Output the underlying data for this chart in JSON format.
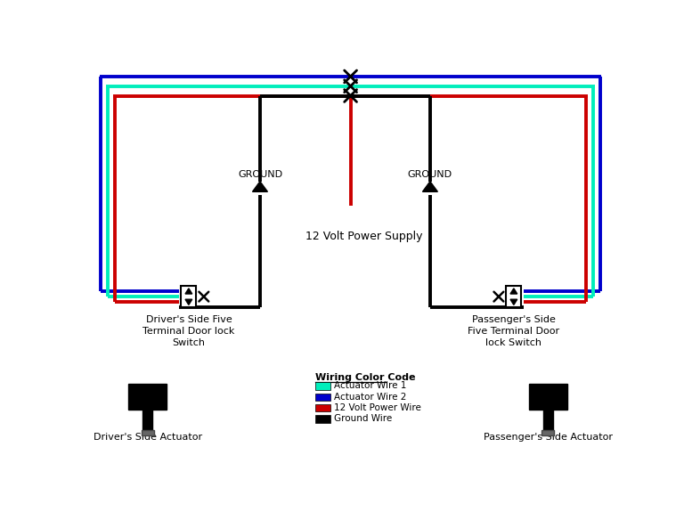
{
  "bg_color": "#ffffff",
  "colors": {
    "blue": "#0000cc",
    "cyan": "#00eebb",
    "red": "#cc0000",
    "black": "#000000"
  },
  "legend": {
    "title": "Wiring Color Code",
    "items": [
      {
        "label": "Actuator Wire 1",
        "color": "#00eebb"
      },
      {
        "label": "Actuator Wire 2",
        "color": "#0000cc"
      },
      {
        "label": "12 Volt Power Wire",
        "color": "#cc0000"
      },
      {
        "label": "Ground Wire",
        "color": "#000000"
      }
    ]
  },
  "center_text": "12 Volt Power Supply",
  "left_switch_label": "Driver's Side Five\nTerminal Door lock\nSwitch",
  "right_switch_label": "Passenger's Side\nFive Terminal Door\nlock Switch",
  "left_actuator_label": "Driver's Side Actuator",
  "right_actuator_label": "Passenger's Side Actuator"
}
